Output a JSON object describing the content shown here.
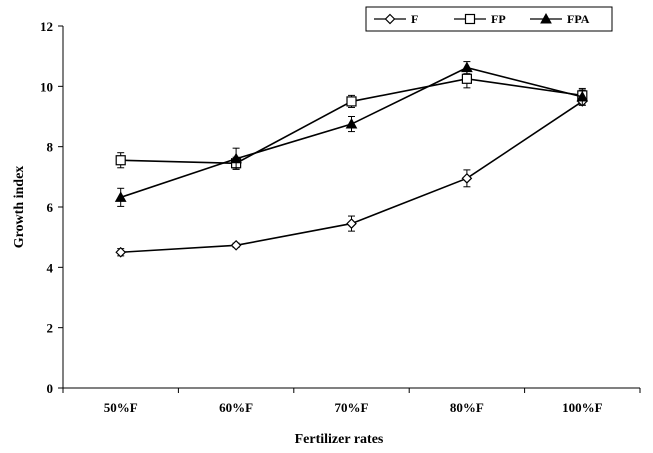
{
  "chart_data": {
    "type": "line",
    "xlabel": "Fertilizer rates",
    "ylabel": "Growth index",
    "categories": [
      "50%F",
      "60%F",
      "70%F",
      "80%F",
      "100%F"
    ],
    "ylim": [
      0,
      12
    ],
    "yticks": [
      0,
      2,
      4,
      6,
      8,
      10,
      12
    ],
    "grid": false,
    "legend_position": "top-right",
    "legend_frame": true,
    "series": [
      {
        "name": "F",
        "marker": "diamond-open",
        "values": [
          4.5,
          4.73,
          5.45,
          6.95,
          9.5
        ],
        "errors": [
          0.12,
          0.07,
          0.25,
          0.28,
          0.12
        ]
      },
      {
        "name": "FP",
        "marker": "square-open",
        "values": [
          7.55,
          7.45,
          9.5,
          10.25,
          9.7
        ],
        "errors": [
          0.25,
          0.2,
          0.2,
          0.3,
          0.18
        ]
      },
      {
        "name": "FPA",
        "marker": "triangle-filled",
        "values": [
          6.32,
          7.6,
          8.75,
          10.62,
          9.65
        ],
        "errors": [
          0.3,
          0.35,
          0.25,
          0.2,
          0.28
        ]
      }
    ]
  }
}
